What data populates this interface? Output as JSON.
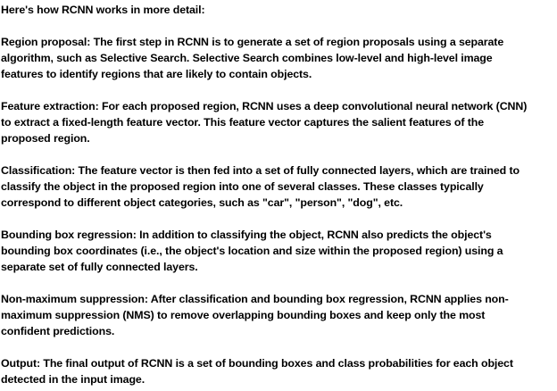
{
  "document": {
    "intro": "Here's how RCNN works in more detail:",
    "paragraphs": [
      {
        "name": "region-proposal",
        "lines": [
          "Region proposal: The first step in RCNN is to generate a set of region proposals using a separate",
          "algorithm, such as Selective Search. Selective Search combines low-level and high-level image",
          "features to identify regions that are likely to contain objects."
        ]
      },
      {
        "name": "feature-extraction",
        "lines": [
          "Feature extraction: For each proposed region, RCNN uses a deep convolutional neural network (CNN)",
          "to extract a fixed-length feature vector. This feature vector captures the salient features of the",
          "proposed region."
        ]
      },
      {
        "name": "classification",
        "lines": [
          "Classification: The feature vector is then fed into a set of fully connected layers, which are trained to",
          "classify the object in the proposed region into one of several classes. These classes typically",
          "correspond to different object categories, such as \"car\", \"person\", \"dog\", etc."
        ]
      },
      {
        "name": "bounding-box-regression",
        "lines": [
          "Bounding box regression: In addition to classifying the object, RCNN also predicts the object's",
          "bounding box coordinates (i.e., the object's location and size within the proposed region) using a",
          "separate set of fully connected layers."
        ]
      },
      {
        "name": "non-maximum-suppression",
        "lines": [
          "Non-maximum suppression: After classification and bounding box regression, RCNN applies non-",
          "maximum suppression (NMS) to remove overlapping bounding boxes and keep only the most",
          "confident predictions."
        ]
      },
      {
        "name": "output",
        "lines": [
          "Output: The final output of RCNN is a set of bounding boxes and class probabilities for each object",
          "detected in the input image."
        ]
      }
    ]
  }
}
